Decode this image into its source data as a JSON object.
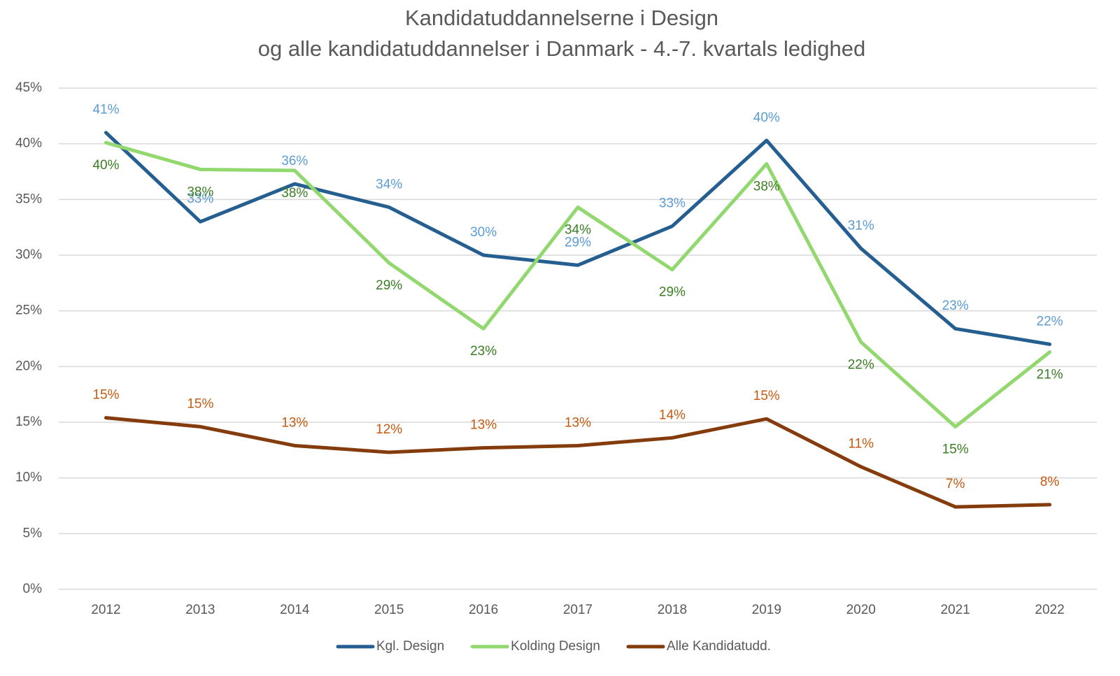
{
  "chart_data": {
    "type": "line",
    "title": [
      "Kandidatuddannelserne i Design",
      "og alle kandidatuddannelser i Danmark - 4.-7. kvartals ledighed"
    ],
    "categories": [
      "2012",
      "2013",
      "2014",
      "2015",
      "2016",
      "2017",
      "2018",
      "2019",
      "2020",
      "2021",
      "2022"
    ],
    "series": [
      {
        "name": "Kgl. Design",
        "color": "#255e91",
        "label_color": "#5b9bd5",
        "label_position": "above",
        "values": [
          41.0,
          33.0,
          36.4,
          34.3,
          30.0,
          29.1,
          32.6,
          40.3,
          30.6,
          23.4,
          22.0
        ],
        "value_labels": [
          "41%",
          "33%",
          "36%",
          "34%",
          "30%",
          "29%",
          "33%",
          "40%",
          "31%",
          "23%",
          "22%"
        ]
      },
      {
        "name": "Kolding Design",
        "color": "#92d86f",
        "label_color": "#3a7d22",
        "label_position": "below",
        "values": [
          40.1,
          37.7,
          37.6,
          29.3,
          23.4,
          34.3,
          28.7,
          38.2,
          22.2,
          14.6,
          21.3
        ],
        "value_labels": [
          "40%",
          "38%",
          "38%",
          "29%",
          "23%",
          "34%",
          "29%",
          "38%",
          "22%",
          "15%",
          "21%"
        ]
      },
      {
        "name": "Alle Kandidatudd.",
        "color": "#843c0c",
        "label_color": "#c55a11",
        "label_position": "above",
        "values": [
          15.4,
          14.6,
          12.9,
          12.3,
          12.7,
          12.9,
          13.6,
          15.3,
          11.0,
          7.4,
          7.6
        ],
        "value_labels": [
          "15%",
          "15%",
          "13%",
          "12%",
          "13%",
          "13%",
          "14%",
          "15%",
          "11%",
          "7%",
          "8%"
        ]
      }
    ],
    "ylim": [
      0,
      45
    ],
    "yticks": [
      {
        "value": 0,
        "label": "0%"
      },
      {
        "value": 5,
        "label": "5%"
      },
      {
        "value": 10,
        "label": "10%"
      },
      {
        "value": 15,
        "label": "15%"
      },
      {
        "value": 20,
        "label": "20%"
      },
      {
        "value": 25,
        "label": "25%"
      },
      {
        "value": 30,
        "label": "30%"
      },
      {
        "value": 35,
        "label": "35%"
      },
      {
        "value": 40,
        "label": "40%"
      },
      {
        "value": 45,
        "label": "45%"
      }
    ],
    "grid": true,
    "legend": "bottom"
  }
}
